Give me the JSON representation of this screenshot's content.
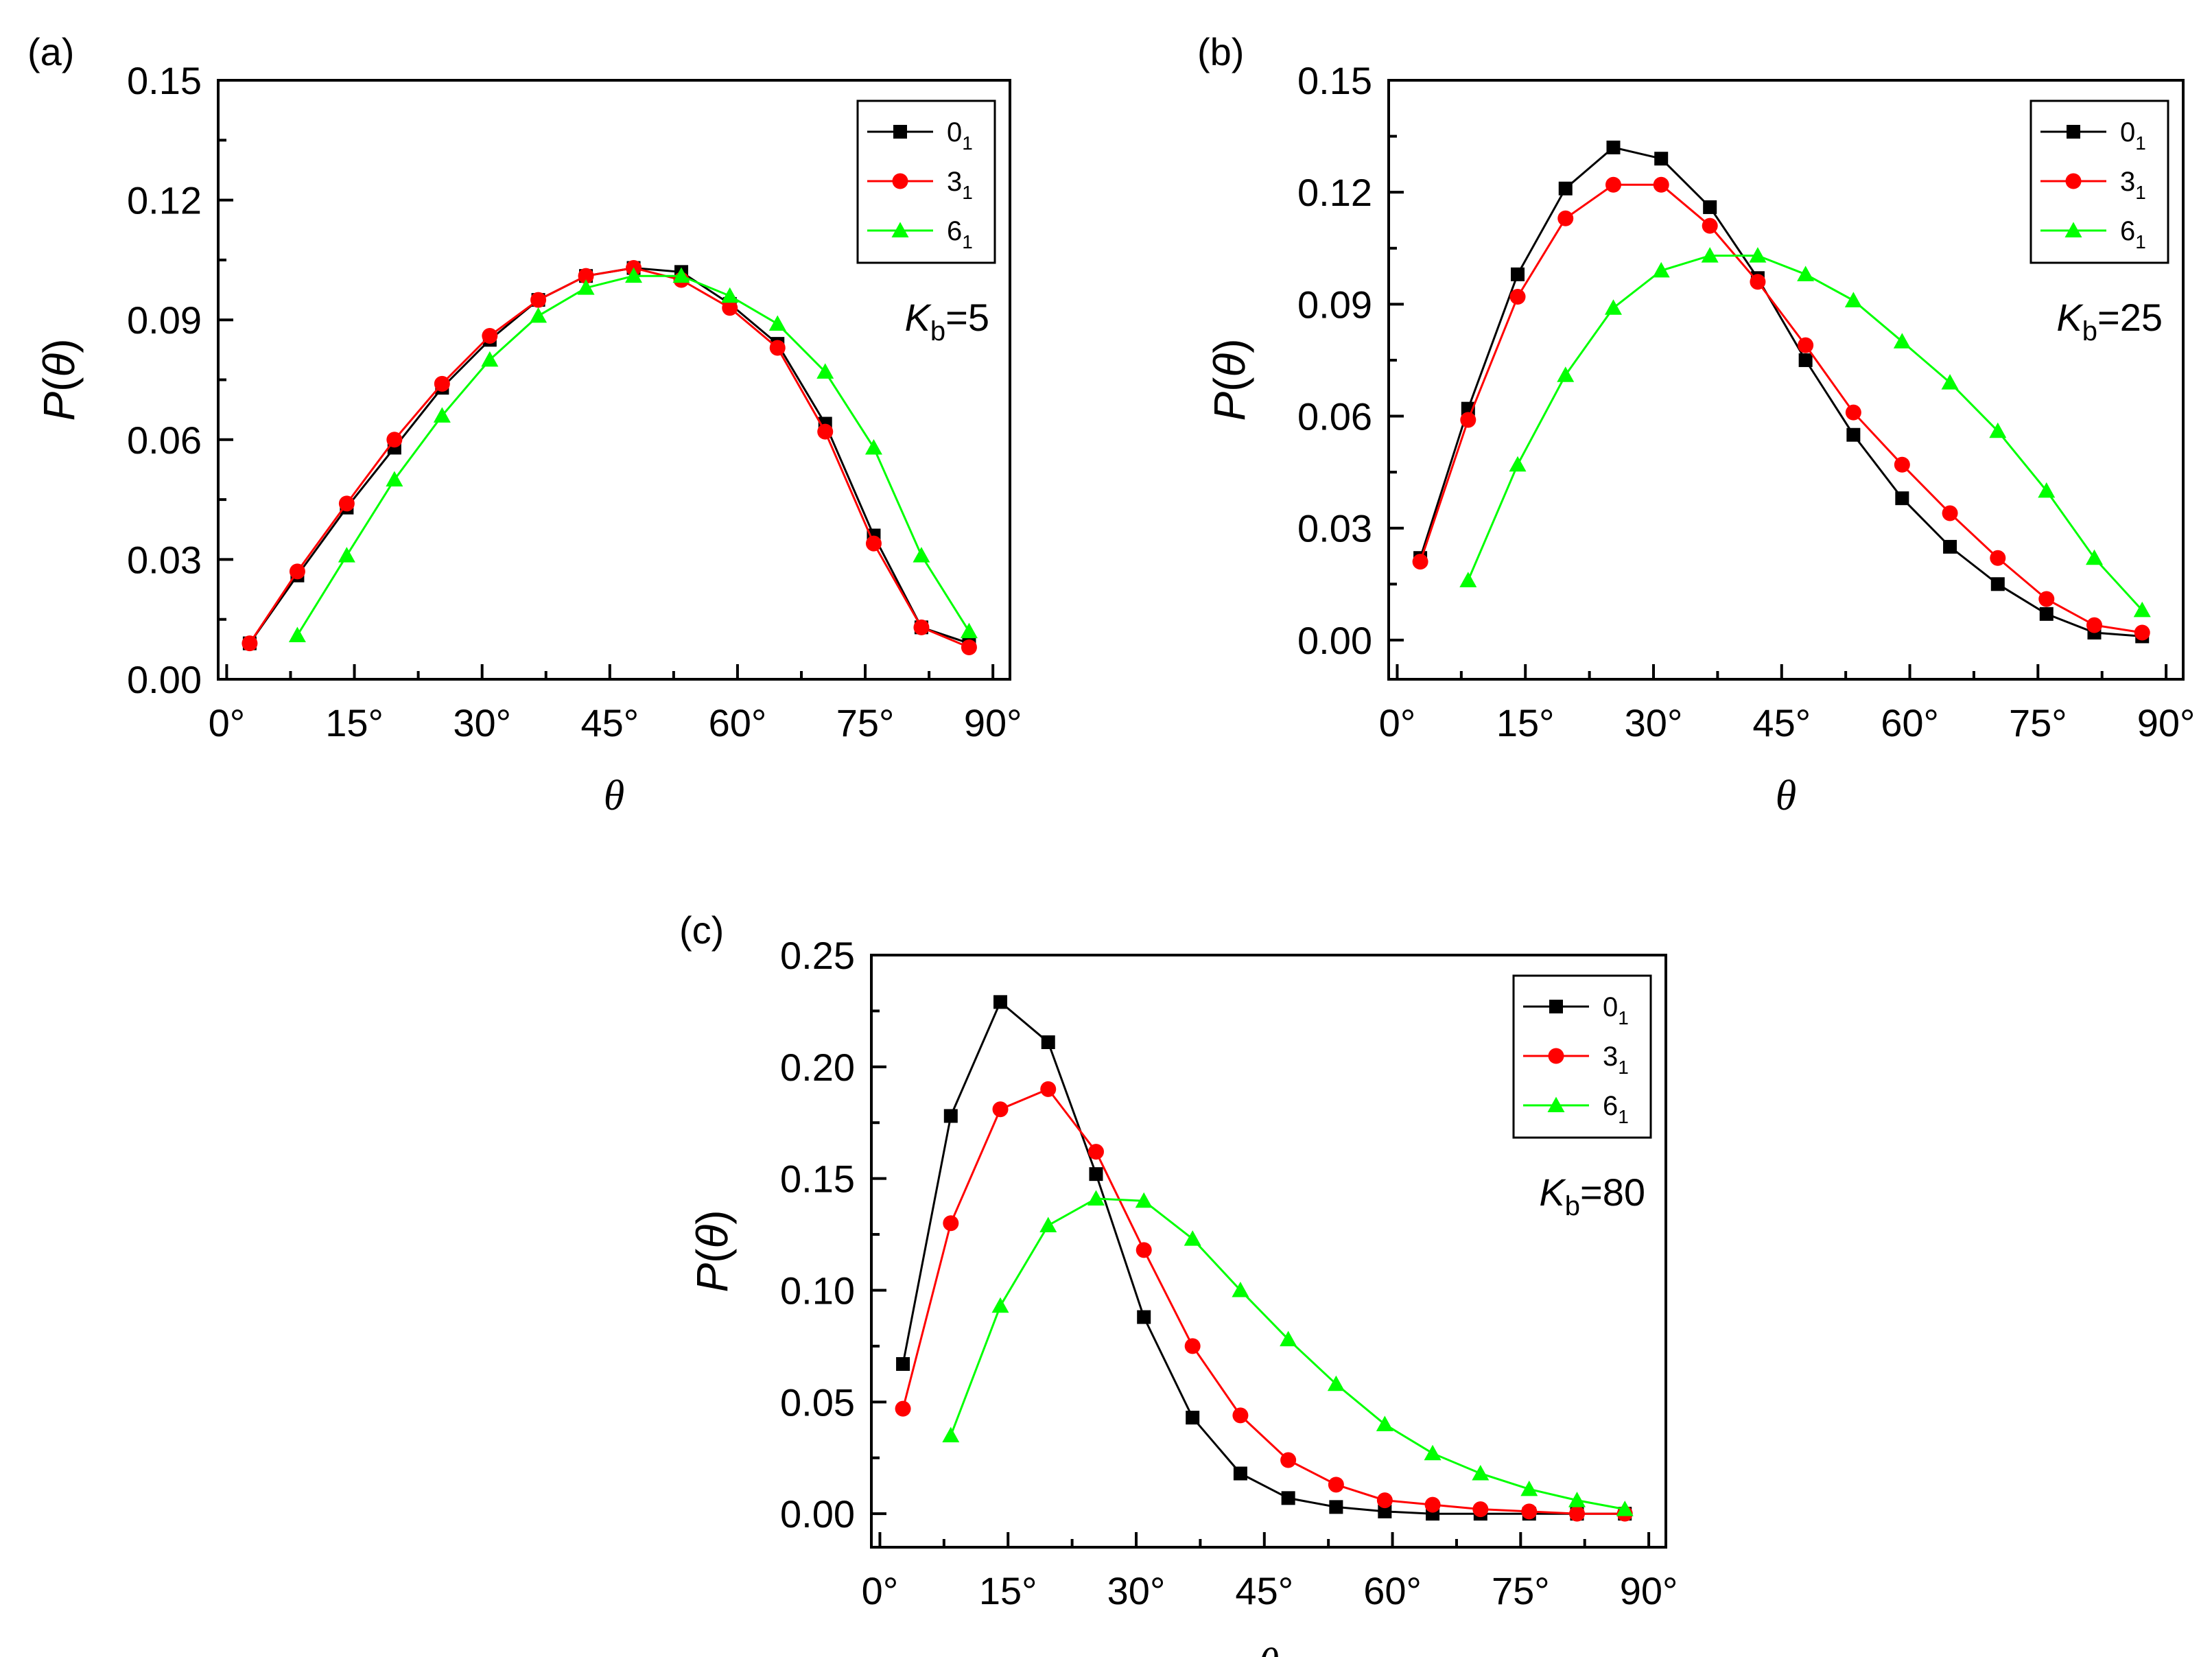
{
  "colors": {
    "series_01": "#000000",
    "series_31": "#ff0000",
    "series_61": "#00ff00",
    "axis": "#000000",
    "background": "#ffffff"
  },
  "chart_data": [
    {
      "panel": "(a)",
      "type": "line",
      "xlabel": "θ",
      "ylabel_prefix": "P(",
      "ylabel_var": "θ",
      "ylabel_suffix": ")",
      "xlim": [
        -1,
        92
      ],
      "ylim": [
        0.0,
        0.15
      ],
      "xticks": [
        "0°",
        "15°",
        "30°",
        "45°",
        "60°",
        "75°",
        "90°"
      ],
      "xtick_values": [
        0,
        15,
        30,
        45,
        60,
        75,
        90
      ],
      "yticks": [
        "0.00",
        "0.03",
        "0.06",
        "0.09",
        "0.12",
        "0.15"
      ],
      "ytick_values": [
        0.0,
        0.03,
        0.06,
        0.09,
        0.12,
        0.15
      ],
      "annotation": {
        "var": "K",
        "sub": "b",
        "value": "=5"
      },
      "legend_position": "top-right",
      "series": [
        {
          "name": "0",
          "sub": "1",
          "marker": "square",
          "color": "#000000",
          "x": [
            2.7,
            8.3,
            14.1,
            19.7,
            25.3,
            30.9,
            36.6,
            42.2,
            47.8,
            53.4,
            59.1,
            64.7,
            70.3,
            76.0,
            81.6,
            87.2
          ],
          "y": [
            0.009,
            0.026,
            0.043,
            0.058,
            0.073,
            0.085,
            0.095,
            0.101,
            0.103,
            0.102,
            0.094,
            0.084,
            0.064,
            0.036,
            0.013,
            0.009
          ]
        },
        {
          "name": "3",
          "sub": "1",
          "marker": "circle",
          "color": "#ff0000",
          "x": [
            2.7,
            8.3,
            14.1,
            19.7,
            25.3,
            30.9,
            36.6,
            42.2,
            47.8,
            53.4,
            59.1,
            64.7,
            70.3,
            76.0,
            81.6,
            87.2
          ],
          "y": [
            0.009,
            0.027,
            0.044,
            0.06,
            0.074,
            0.086,
            0.095,
            0.101,
            0.103,
            0.1,
            0.093,
            0.083,
            0.062,
            0.034,
            0.013,
            0.008
          ]
        },
        {
          "name": "6",
          "sub": "1",
          "marker": "triangle",
          "color": "#00ff00",
          "x": [
            8.3,
            14.1,
            19.7,
            25.3,
            30.9,
            36.6,
            42.2,
            47.8,
            53.4,
            59.1,
            64.7,
            70.3,
            76.0,
            81.6,
            87.2
          ],
          "y": [
            0.011,
            0.031,
            0.05,
            0.066,
            0.08,
            0.091,
            0.098,
            0.101,
            0.101,
            0.096,
            0.089,
            0.077,
            0.058,
            0.031,
            0.012
          ]
        }
      ]
    },
    {
      "panel": "(b)",
      "type": "line",
      "xlabel": "θ",
      "ylabel_prefix": "P(",
      "ylabel_var": "θ",
      "ylabel_suffix": ")",
      "xlim": [
        -1,
        92
      ],
      "ylim": [
        -0.0105,
        0.15
      ],
      "xticks": [
        "0°",
        "15°",
        "30°",
        "45°",
        "60°",
        "75°",
        "90°"
      ],
      "xtick_values": [
        0,
        15,
        30,
        45,
        60,
        75,
        90
      ],
      "yticks": [
        "0.00",
        "0.03",
        "0.06",
        "0.09",
        "0.12",
        "0.15"
      ],
      "ytick_values": [
        0.0,
        0.03,
        0.06,
        0.09,
        0.12,
        0.15
      ],
      "annotation": {
        "var": "K",
        "sub": "b",
        "value": "=25"
      },
      "legend_position": "top-right",
      "series": [
        {
          "name": "0",
          "sub": "1",
          "marker": "square",
          "color": "#000000",
          "x": [
            2.7,
            8.3,
            14.1,
            19.7,
            25.3,
            30.9,
            36.6,
            42.2,
            47.8,
            53.4,
            59.1,
            64.7,
            70.3,
            76.0,
            81.6,
            87.2
          ],
          "y": [
            0.022,
            0.062,
            0.098,
            0.121,
            0.132,
            0.129,
            0.116,
            0.097,
            0.075,
            0.055,
            0.038,
            0.025,
            0.015,
            0.007,
            0.002,
            0.001
          ]
        },
        {
          "name": "3",
          "sub": "1",
          "marker": "circle",
          "color": "#ff0000",
          "x": [
            2.7,
            8.3,
            14.1,
            19.7,
            25.3,
            30.9,
            36.6,
            42.2,
            47.8,
            53.4,
            59.1,
            64.7,
            70.3,
            76.0,
            81.6,
            87.2
          ],
          "y": [
            0.021,
            0.059,
            0.092,
            0.113,
            0.122,
            0.122,
            0.111,
            0.096,
            0.079,
            0.061,
            0.047,
            0.034,
            0.022,
            0.011,
            0.004,
            0.002
          ]
        },
        {
          "name": "6",
          "sub": "1",
          "marker": "triangle",
          "color": "#00ff00",
          "x": [
            8.3,
            14.1,
            19.7,
            25.3,
            30.9,
            36.6,
            42.2,
            47.8,
            53.4,
            59.1,
            64.7,
            70.3,
            76.0,
            81.6,
            87.2
          ],
          "y": [
            0.016,
            0.047,
            0.071,
            0.089,
            0.099,
            0.103,
            0.103,
            0.098,
            0.091,
            0.08,
            0.069,
            0.056,
            0.04,
            0.022,
            0.008
          ]
        }
      ]
    },
    {
      "panel": "(c)",
      "type": "line",
      "xlabel": "θ",
      "ylabel_prefix": "P(",
      "ylabel_var": "θ",
      "ylabel_suffix": ")",
      "xlim": [
        -1,
        92
      ],
      "ylim": [
        -0.015,
        0.25
      ],
      "xticks": [
        "0°",
        "15°",
        "30°",
        "45°",
        "60°",
        "75°",
        "90°"
      ],
      "xtick_values": [
        0,
        15,
        30,
        45,
        60,
        75,
        90
      ],
      "yticks": [
        "0.00",
        "0.05",
        "0.10",
        "0.15",
        "0.20",
        "0.25"
      ],
      "ytick_values": [
        0.0,
        0.05,
        0.1,
        0.15,
        0.2,
        0.25
      ],
      "annotation": {
        "var": "K",
        "sub": "b",
        "value": "=80"
      },
      "legend_position": "top-right",
      "series": [
        {
          "name": "0",
          "sub": "1",
          "marker": "square",
          "color": "#000000",
          "x": [
            2.7,
            8.3,
            14.1,
            19.7,
            25.3,
            30.9,
            36.6,
            42.2,
            47.8,
            53.4,
            59.1,
            64.7,
            70.3,
            76.0,
            81.6,
            87.2
          ],
          "y": [
            0.067,
            0.178,
            0.229,
            0.211,
            0.152,
            0.088,
            0.043,
            0.018,
            0.007,
            0.003,
            0.001,
            0.0,
            0.0,
            0.0,
            0.0,
            0.0
          ]
        },
        {
          "name": "3",
          "sub": "1",
          "marker": "circle",
          "color": "#ff0000",
          "x": [
            2.7,
            8.3,
            14.1,
            19.7,
            25.3,
            30.9,
            36.6,
            42.2,
            47.8,
            53.4,
            59.1,
            64.7,
            70.3,
            76.0,
            81.6,
            87.2
          ],
          "y": [
            0.047,
            0.13,
            0.181,
            0.19,
            0.162,
            0.118,
            0.075,
            0.044,
            0.024,
            0.013,
            0.006,
            0.004,
            0.002,
            0.001,
            0.0,
            0.0
          ]
        },
        {
          "name": "6",
          "sub": "1",
          "marker": "triangle",
          "color": "#00ff00",
          "x": [
            8.3,
            14.1,
            19.7,
            25.3,
            30.9,
            36.6,
            42.2,
            47.8,
            53.4,
            59.1,
            64.7,
            70.3,
            76.0,
            81.6,
            87.2
          ],
          "y": [
            0.035,
            0.093,
            0.129,
            0.141,
            0.14,
            0.123,
            0.1,
            0.078,
            0.058,
            0.04,
            0.027,
            0.018,
            0.011,
            0.006,
            0.002
          ]
        }
      ]
    }
  ]
}
